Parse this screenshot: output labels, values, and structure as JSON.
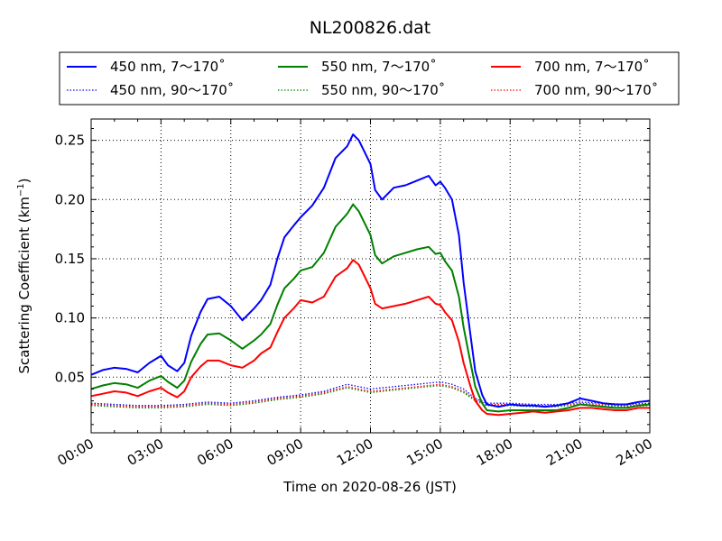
{
  "chart_data": {
    "type": "line",
    "title": "NL200826.dat",
    "xlabel": "Time on 2020-08-26 (JST)",
    "ylabel_main": "Scattering Coefficient (km",
    "ylabel_sup": "−1",
    "ylabel_close": ")",
    "xlim": [
      0,
      24
    ],
    "ylim": [
      0.003,
      0.268
    ],
    "x_tick_values": [
      0,
      3,
      6,
      9,
      12,
      15,
      18,
      21,
      24
    ],
    "x_tick_labels": [
      "00:00",
      "03:00",
      "06:00",
      "09:00",
      "12:00",
      "15:00",
      "18:00",
      "21:00",
      "24:00"
    ],
    "y_tick_values": [
      0.05,
      0.1,
      0.15,
      0.2,
      0.25
    ],
    "y_tick_labels": [
      "0.05",
      "0.10",
      "0.15",
      "0.20",
      "0.25"
    ],
    "grid": true,
    "legend_placement": "top, above plot",
    "series": [
      {
        "name": "450 nm, 7～170˚",
        "color": "#0000ff",
        "style": "solid",
        "points": [
          [
            0,
            0.052
          ],
          [
            0.5,
            0.056
          ],
          [
            1,
            0.058
          ],
          [
            1.5,
            0.057
          ],
          [
            2,
            0.054
          ],
          [
            2.5,
            0.062
          ],
          [
            3,
            0.068
          ],
          [
            3.3,
            0.06
          ],
          [
            3.7,
            0.055
          ],
          [
            4,
            0.062
          ],
          [
            4.3,
            0.085
          ],
          [
            4.7,
            0.105
          ],
          [
            5,
            0.116
          ],
          [
            5.5,
            0.118
          ],
          [
            6,
            0.11
          ],
          [
            6.5,
            0.098
          ],
          [
            7,
            0.108
          ],
          [
            7.3,
            0.115
          ],
          [
            7.7,
            0.128
          ],
          [
            8,
            0.15
          ],
          [
            8.3,
            0.168
          ],
          [
            8.7,
            0.178
          ],
          [
            9,
            0.185
          ],
          [
            9.5,
            0.195
          ],
          [
            10,
            0.21
          ],
          [
            10.5,
            0.235
          ],
          [
            11,
            0.245
          ],
          [
            11.25,
            0.255
          ],
          [
            11.5,
            0.25
          ],
          [
            12,
            0.23
          ],
          [
            12.2,
            0.208
          ],
          [
            12.5,
            0.2
          ],
          [
            13,
            0.21
          ],
          [
            13.5,
            0.212
          ],
          [
            14,
            0.216
          ],
          [
            14.5,
            0.22
          ],
          [
            14.8,
            0.212
          ],
          [
            15,
            0.215
          ],
          [
            15.2,
            0.21
          ],
          [
            15.5,
            0.2
          ],
          [
            15.8,
            0.17
          ],
          [
            16,
            0.13
          ],
          [
            16.3,
            0.085
          ],
          [
            16.5,
            0.055
          ],
          [
            16.8,
            0.035
          ],
          [
            17,
            0.027
          ],
          [
            17.5,
            0.025
          ],
          [
            18,
            0.027
          ],
          [
            18.5,
            0.026
          ],
          [
            19,
            0.026
          ],
          [
            19.5,
            0.025
          ],
          [
            20,
            0.026
          ],
          [
            20.5,
            0.028
          ],
          [
            21,
            0.032
          ],
          [
            21.5,
            0.03
          ],
          [
            22,
            0.028
          ],
          [
            22.5,
            0.027
          ],
          [
            23,
            0.027
          ],
          [
            23.5,
            0.029
          ],
          [
            24,
            0.03
          ]
        ]
      },
      {
        "name": "550 nm, 7～170˚",
        "color": "#008000",
        "style": "solid",
        "points": [
          [
            0,
            0.04
          ],
          [
            0.5,
            0.043
          ],
          [
            1,
            0.045
          ],
          [
            1.5,
            0.044
          ],
          [
            2,
            0.041
          ],
          [
            2.5,
            0.047
          ],
          [
            3,
            0.051
          ],
          [
            3.3,
            0.046
          ],
          [
            3.7,
            0.041
          ],
          [
            4,
            0.047
          ],
          [
            4.3,
            0.063
          ],
          [
            4.7,
            0.078
          ],
          [
            5,
            0.086
          ],
          [
            5.5,
            0.087
          ],
          [
            6,
            0.081
          ],
          [
            6.5,
            0.074
          ],
          [
            7,
            0.081
          ],
          [
            7.3,
            0.086
          ],
          [
            7.7,
            0.095
          ],
          [
            8,
            0.111
          ],
          [
            8.3,
            0.125
          ],
          [
            8.7,
            0.133
          ],
          [
            9,
            0.14
          ],
          [
            9.5,
            0.143
          ],
          [
            10,
            0.155
          ],
          [
            10.5,
            0.177
          ],
          [
            11,
            0.188
          ],
          [
            11.25,
            0.196
          ],
          [
            11.5,
            0.19
          ],
          [
            12,
            0.17
          ],
          [
            12.2,
            0.153
          ],
          [
            12.5,
            0.146
          ],
          [
            13,
            0.152
          ],
          [
            13.5,
            0.155
          ],
          [
            14,
            0.158
          ],
          [
            14.5,
            0.16
          ],
          [
            14.8,
            0.154
          ],
          [
            15,
            0.155
          ],
          [
            15.2,
            0.148
          ],
          [
            15.5,
            0.14
          ],
          [
            15.8,
            0.118
          ],
          [
            16,
            0.092
          ],
          [
            16.3,
            0.062
          ],
          [
            16.5,
            0.042
          ],
          [
            16.8,
            0.028
          ],
          [
            17,
            0.022
          ],
          [
            17.5,
            0.021
          ],
          [
            18,
            0.022
          ],
          [
            18.5,
            0.022
          ],
          [
            19,
            0.022
          ],
          [
            19.5,
            0.022
          ],
          [
            20,
            0.022
          ],
          [
            20.5,
            0.024
          ],
          [
            21,
            0.027
          ],
          [
            21.5,
            0.026
          ],
          [
            22,
            0.025
          ],
          [
            22.5,
            0.024
          ],
          [
            23,
            0.024
          ],
          [
            23.5,
            0.026
          ],
          [
            24,
            0.027
          ]
        ]
      },
      {
        "name": "700 nm, 7～170˚",
        "color": "#ff0000",
        "style": "solid",
        "points": [
          [
            0,
            0.034
          ],
          [
            0.5,
            0.036
          ],
          [
            1,
            0.038
          ],
          [
            1.5,
            0.037
          ],
          [
            2,
            0.034
          ],
          [
            2.5,
            0.038
          ],
          [
            3,
            0.041
          ],
          [
            3.3,
            0.037
          ],
          [
            3.7,
            0.033
          ],
          [
            4,
            0.038
          ],
          [
            4.3,
            0.05
          ],
          [
            4.7,
            0.059
          ],
          [
            5,
            0.064
          ],
          [
            5.5,
            0.064
          ],
          [
            6,
            0.06
          ],
          [
            6.5,
            0.058
          ],
          [
            7,
            0.064
          ],
          [
            7.3,
            0.07
          ],
          [
            7.7,
            0.075
          ],
          [
            8,
            0.088
          ],
          [
            8.3,
            0.1
          ],
          [
            8.7,
            0.108
          ],
          [
            9,
            0.115
          ],
          [
            9.5,
            0.113
          ],
          [
            10,
            0.118
          ],
          [
            10.5,
            0.135
          ],
          [
            11,
            0.142
          ],
          [
            11.25,
            0.149
          ],
          [
            11.5,
            0.145
          ],
          [
            12,
            0.125
          ],
          [
            12.2,
            0.112
          ],
          [
            12.5,
            0.108
          ],
          [
            13,
            0.11
          ],
          [
            13.5,
            0.112
          ],
          [
            14,
            0.115
          ],
          [
            14.5,
            0.118
          ],
          [
            14.8,
            0.112
          ],
          [
            15,
            0.111
          ],
          [
            15.2,
            0.105
          ],
          [
            15.5,
            0.098
          ],
          [
            15.8,
            0.08
          ],
          [
            16,
            0.062
          ],
          [
            16.3,
            0.042
          ],
          [
            16.5,
            0.03
          ],
          [
            16.8,
            0.022
          ],
          [
            17,
            0.019
          ],
          [
            17.5,
            0.018
          ],
          [
            18,
            0.019
          ],
          [
            18.5,
            0.02
          ],
          [
            19,
            0.021
          ],
          [
            19.5,
            0.02
          ],
          [
            20,
            0.021
          ],
          [
            20.5,
            0.022
          ],
          [
            21,
            0.024
          ],
          [
            21.5,
            0.024
          ],
          [
            22,
            0.023
          ],
          [
            22.5,
            0.022
          ],
          [
            23,
            0.022
          ],
          [
            23.5,
            0.024
          ],
          [
            24,
            0.024
          ]
        ]
      },
      {
        "name": "450 nm, 90～170˚",
        "color": "#0000ff",
        "style": "dotted",
        "points": [
          [
            0,
            0.028
          ],
          [
            1,
            0.027
          ],
          [
            2,
            0.026
          ],
          [
            3,
            0.026
          ],
          [
            4,
            0.027
          ],
          [
            5,
            0.029
          ],
          [
            6,
            0.028
          ],
          [
            7,
            0.03
          ],
          [
            8,
            0.033
          ],
          [
            9,
            0.035
          ],
          [
            10,
            0.038
          ],
          [
            11,
            0.044
          ],
          [
            11.5,
            0.042
          ],
          [
            12,
            0.04
          ],
          [
            13,
            0.042
          ],
          [
            14,
            0.044
          ],
          [
            15,
            0.046
          ],
          [
            15.5,
            0.044
          ],
          [
            16,
            0.04
          ],
          [
            16.5,
            0.032
          ],
          [
            17,
            0.028
          ],
          [
            18,
            0.028
          ],
          [
            19,
            0.027
          ],
          [
            20,
            0.027
          ],
          [
            21,
            0.029
          ],
          [
            22,
            0.028
          ],
          [
            23,
            0.027
          ],
          [
            24,
            0.028
          ]
        ]
      },
      {
        "name": "550 nm, 90～170˚",
        "color": "#008000",
        "style": "dotted",
        "points": [
          [
            0,
            0.026
          ],
          [
            1,
            0.025
          ],
          [
            2,
            0.024
          ],
          [
            3,
            0.024
          ],
          [
            4,
            0.025
          ],
          [
            5,
            0.027
          ],
          [
            6,
            0.026
          ],
          [
            7,
            0.028
          ],
          [
            8,
            0.031
          ],
          [
            9,
            0.033
          ],
          [
            10,
            0.036
          ],
          [
            11,
            0.041
          ],
          [
            11.5,
            0.039
          ],
          [
            12,
            0.037
          ],
          [
            13,
            0.039
          ],
          [
            14,
            0.041
          ],
          [
            15,
            0.043
          ],
          [
            15.5,
            0.041
          ],
          [
            16,
            0.037
          ],
          [
            16.5,
            0.03
          ],
          [
            17,
            0.026
          ],
          [
            18,
            0.026
          ],
          [
            19,
            0.025
          ],
          [
            20,
            0.025
          ],
          [
            21,
            0.027
          ],
          [
            22,
            0.026
          ],
          [
            23,
            0.025
          ],
          [
            24,
            0.026
          ]
        ]
      },
      {
        "name": "700 nm, 90～170˚",
        "color": "#ff0000",
        "style": "dotted",
        "points": [
          [
            0,
            0.027
          ],
          [
            1,
            0.026
          ],
          [
            2,
            0.025
          ],
          [
            3,
            0.025
          ],
          [
            4,
            0.026
          ],
          [
            5,
            0.028
          ],
          [
            6,
            0.027
          ],
          [
            7,
            0.029
          ],
          [
            8,
            0.032
          ],
          [
            9,
            0.034
          ],
          [
            10,
            0.037
          ],
          [
            11,
            0.042
          ],
          [
            11.5,
            0.04
          ],
          [
            12,
            0.038
          ],
          [
            13,
            0.04
          ],
          [
            14,
            0.042
          ],
          [
            15,
            0.044
          ],
          [
            15.5,
            0.042
          ],
          [
            16,
            0.038
          ],
          [
            16.5,
            0.031
          ],
          [
            17,
            0.027
          ],
          [
            18,
            0.027
          ],
          [
            19,
            0.026
          ],
          [
            20,
            0.026
          ],
          [
            21,
            0.028
          ],
          [
            22,
            0.027
          ],
          [
            23,
            0.026
          ],
          [
            24,
            0.027
          ]
        ]
      }
    ]
  }
}
